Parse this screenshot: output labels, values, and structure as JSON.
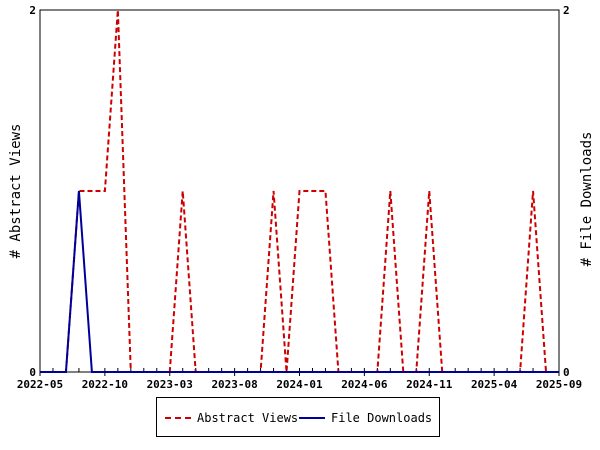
{
  "chart_data": {
    "type": "line",
    "x": [
      "2022-05",
      "2022-06",
      "2022-07",
      "2022-08",
      "2022-09",
      "2022-10",
      "2022-11",
      "2022-12",
      "2023-01",
      "2023-02",
      "2023-03",
      "2023-04",
      "2023-05",
      "2023-06",
      "2023-07",
      "2023-08",
      "2023-09",
      "2023-10",
      "2023-11",
      "2023-12",
      "2024-01",
      "2024-02",
      "2024-03",
      "2024-04",
      "2024-05",
      "2024-06",
      "2024-07",
      "2024-08",
      "2024-09",
      "2024-10",
      "2024-11",
      "2024-12",
      "2025-01",
      "2025-02",
      "2025-03",
      "2025-04",
      "2025-05",
      "2025-06",
      "2025-07",
      "2025-08",
      "2025-09"
    ],
    "series": [
      {
        "name": "Abstract Views",
        "axis": "left",
        "color": "#cc0000",
        "dash": "dashed",
        "values": [
          0,
          0,
          0,
          1,
          1,
          1,
          2,
          0,
          0,
          0,
          0,
          1,
          0,
          0,
          0,
          0,
          0,
          0,
          1,
          0,
          1,
          1,
          1,
          0,
          0,
          0,
          0,
          1,
          0,
          0,
          1,
          0,
          0,
          0,
          0,
          0,
          0,
          0,
          1,
          0,
          0
        ]
      },
      {
        "name": "File Downloads",
        "axis": "right",
        "color": "#000099",
        "dash": "solid",
        "values": [
          0,
          0,
          0,
          1,
          0,
          0,
          0,
          0,
          0,
          0,
          0,
          0,
          0,
          0,
          0,
          0,
          0,
          0,
          0,
          0,
          0,
          0,
          0,
          0,
          0,
          0,
          0,
          0,
          0,
          0,
          0,
          0,
          0,
          0,
          0,
          0,
          0,
          0,
          0,
          0,
          0
        ]
      }
    ],
    "xtick_labels": [
      "2022-05",
      "2022-10",
      "2023-03",
      "2023-08",
      "2024-01",
      "2024-06",
      "2024-11",
      "2025-04",
      "2025-09"
    ],
    "ylabel": "# Abstract Views",
    "y2label": "# File Downloads",
    "ylim": [
      0,
      2
    ],
    "y2lim": [
      0,
      2
    ],
    "yticks": [
      "0",
      "2"
    ],
    "y2ticks": [
      "0",
      "2"
    ],
    "grid": false,
    "legend_position": "bottom"
  },
  "legend": {
    "abstract_label": "Abstract Views",
    "downloads_label": "File Downloads"
  }
}
